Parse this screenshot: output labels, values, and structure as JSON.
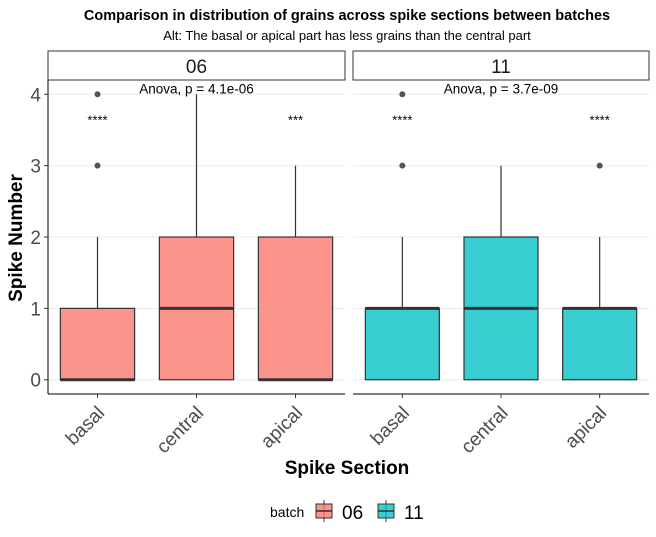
{
  "chart_data": {
    "type": "box",
    "title": "Comparison in distribution of grains across spike sections between batches",
    "subtitle": "Alt: The basal or apical part has less grains than the central part",
    "xlabel": "Spike Section",
    "ylabel": "Spike Number",
    "ylim": [
      -0.2,
      4.2
    ],
    "yticks": [
      0,
      1,
      2,
      3,
      4
    ],
    "categories": [
      "basal",
      "central",
      "apical"
    ],
    "legend": {
      "title": "batch",
      "position": "bottom",
      "items": [
        {
          "label": "06",
          "color": "#F8766D"
        },
        {
          "label": "11",
          "color": "#00BFC4"
        }
      ]
    },
    "facets": [
      {
        "label": "06",
        "color": "#F8766D",
        "annotation": "Anova, p = 4.1e-06",
        "boxes": [
          {
            "category": "basal",
            "min": 0,
            "q1": 0,
            "median": 0,
            "q3": 1,
            "max": 2,
            "outliers": [
              3,
              4
            ],
            "signif": "****"
          },
          {
            "category": "central",
            "min": 0,
            "q1": 0,
            "median": 1,
            "q3": 2,
            "max": 4,
            "outliers": [],
            "signif": ""
          },
          {
            "category": "apical",
            "min": 0,
            "q1": 0,
            "median": 0,
            "q3": 2,
            "max": 3,
            "outliers": [],
            "signif": "***"
          }
        ]
      },
      {
        "label": "11",
        "color": "#00BFC4",
        "annotation": "Anova, p = 3.7e-09",
        "boxes": [
          {
            "category": "basal",
            "min": 0,
            "q1": 0,
            "median": 1,
            "q3": 1,
            "max": 2,
            "outliers": [
              3,
              4
            ],
            "signif": "****"
          },
          {
            "category": "central",
            "min": 0,
            "q1": 0,
            "median": 1,
            "q3": 2,
            "max": 3,
            "outliers": [],
            "signif": ""
          },
          {
            "category": "apical",
            "min": 0,
            "q1": 0,
            "median": 1,
            "q3": 1,
            "max": 2,
            "outliers": [
              3
            ],
            "signif": "****"
          }
        ]
      }
    ]
  }
}
